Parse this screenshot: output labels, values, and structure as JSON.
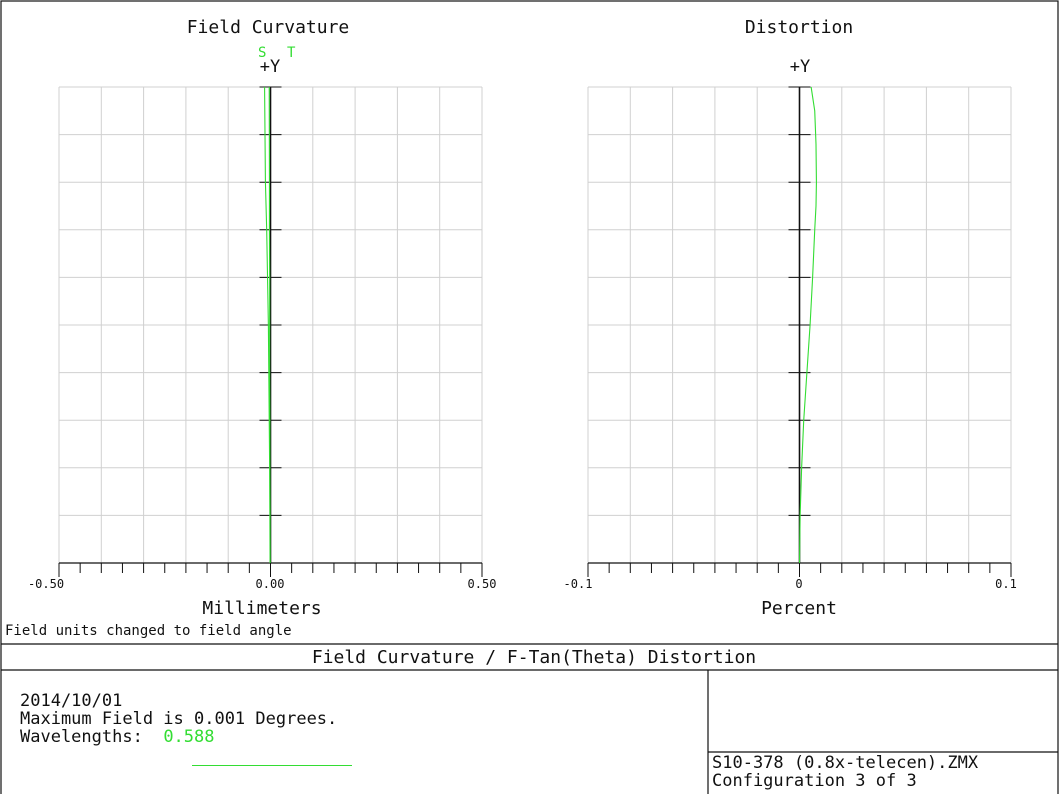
{
  "chart_data": [
    {
      "type": "line",
      "title": "Field Curvature",
      "xlabel": "Millimeters",
      "axis_top_label": "+Y",
      "x_ticks": [
        "-0.50",
        "0.00",
        "0.50"
      ],
      "xlim": [
        -0.5,
        0.5
      ],
      "ylim": [
        0,
        1
      ],
      "grid": true,
      "series": [
        {
          "name": "S",
          "color": "#33dd33",
          "x": [
            -0.001,
            -0.0015,
            -0.002,
            -0.003,
            -0.004,
            -0.005,
            -0.007,
            -0.009,
            -0.012,
            -0.014
          ],
          "y": [
            0.0,
            0.1,
            0.2,
            0.3,
            0.4,
            0.5,
            0.6,
            0.7,
            0.8,
            1.0
          ]
        },
        {
          "name": "T",
          "color": "#33dd33",
          "x": [
            -0.001,
            -0.001,
            -0.0015,
            -0.0015,
            -0.002,
            -0.002,
            -0.002,
            -0.0025,
            -0.0025,
            -0.003
          ],
          "y": [
            0.0,
            0.1,
            0.2,
            0.3,
            0.4,
            0.5,
            0.6,
            0.7,
            0.8,
            1.0
          ]
        }
      ]
    },
    {
      "type": "line",
      "title": "Distortion",
      "xlabel": "Percent",
      "axis_top_label": "+Y",
      "x_ticks": [
        "-0.1",
        "0",
        "0.1"
      ],
      "xlim": [
        -0.1,
        0.1
      ],
      "ylim": [
        0,
        1
      ],
      "grid": true,
      "series": [
        {
          "name": "",
          "color": "#33dd33",
          "x": [
            0.0,
            0.0003,
            0.001,
            0.002,
            0.0035,
            0.005,
            0.0062,
            0.0072,
            0.0078,
            0.008,
            0.0078,
            0.0072,
            0.0055
          ],
          "y": [
            0.0,
            0.1,
            0.2,
            0.3,
            0.4,
            0.5,
            0.6,
            0.7,
            0.75,
            0.8,
            0.88,
            0.95,
            1.0
          ]
        }
      ]
    }
  ],
  "note": "Field units changed to field angle",
  "main_title": "Field Curvature / F-Tan(Theta) Distortion",
  "info": {
    "date": "2014/10/01",
    "max_field": "Maximum Field is 0.001 Degrees.",
    "wavelengths_label": "Wavelengths:",
    "wavelength": "0.588"
  },
  "file": {
    "name": "S10-378 (0.8x-telecen).ZMX",
    "config": "Configuration 3 of 3"
  },
  "colors": {
    "series": "#33dd33",
    "grid": "#d0d0d0",
    "axis": "#111111"
  }
}
